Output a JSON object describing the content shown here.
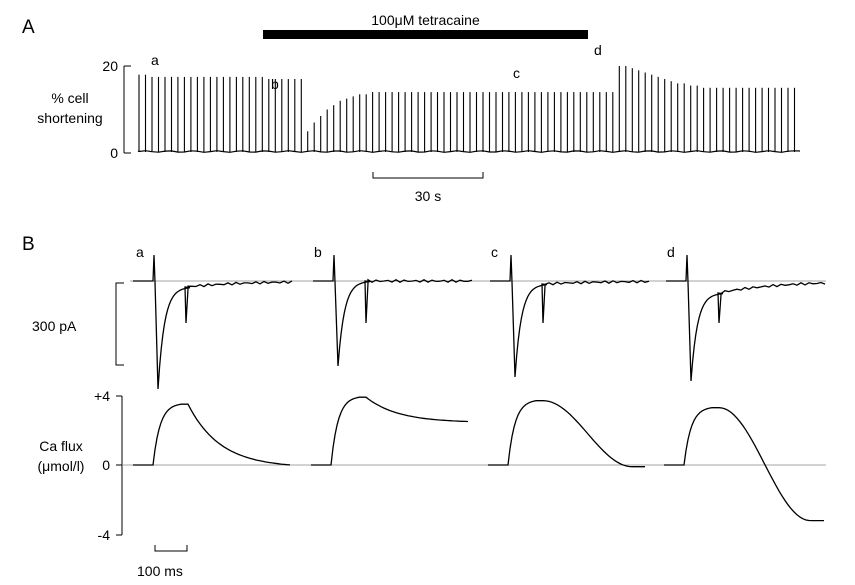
{
  "figure": {
    "panel_a": {
      "letter": "A",
      "drug_bar_label": "100μM tetracaine",
      "ylabel_line1": "% cell",
      "ylabel_line2": "shortening",
      "yticks": [
        "20",
        "0"
      ],
      "scale_bar_label": "30 s",
      "markers": [
        "a",
        "b",
        "c",
        "d"
      ]
    },
    "panel_b": {
      "letter": "B",
      "current_scale_label": "300 pA",
      "trace_labels": [
        "a",
        "b",
        "c",
        "d"
      ],
      "flux_ylabel_line1": "Ca flux",
      "flux_ylabel_line2": "(μmol/l)",
      "flux_yticks": [
        "+4",
        "0",
        "-4"
      ],
      "time_scale_label": "100 ms"
    }
  },
  "chart_data": [
    {
      "type": "line",
      "title": "",
      "xlabel": "",
      "ylabel": "% cell shortening",
      "ylim": [
        0,
        20
      ],
      "y_ticks": [
        0,
        20
      ],
      "scale_bar": "30 s",
      "annotation": "100μM tetracaine",
      "series": [
        {
          "values": [
            18,
            18,
            17.5,
            17.5,
            17.5,
            17.5,
            17.5,
            17.5,
            17.5,
            17.5,
            17.5,
            17.5,
            17.5,
            17.5,
            17.5,
            17.5,
            17.5,
            17.5,
            17.5,
            17.5,
            17,
            17,
            17,
            17,
            17,
            17,
            5,
            7,
            8.5,
            10,
            11,
            12,
            12.5,
            13,
            13.5,
            13.5,
            14,
            14,
            14,
            14,
            14,
            14,
            14,
            14,
            14,
            14,
            14,
            14,
            14,
            14,
            14,
            14,
            14,
            14,
            14,
            14,
            14,
            14,
            14,
            14,
            14,
            14,
            14,
            14,
            14,
            14,
            14,
            14,
            14,
            14,
            14,
            14,
            14,
            14,
            20,
            20,
            19.5,
            19,
            18.5,
            18,
            17.5,
            17,
            16.5,
            16,
            16,
            15.5,
            15.5,
            15,
            15,
            15,
            15,
            15,
            15,
            15,
            15,
            15,
            15,
            15,
            15,
            15,
            15,
            15
          ]
        }
      ]
    },
    {
      "type": "line",
      "title": "",
      "ylabel": "Ca flux (μmol/l)",
      "ylim": [
        -4,
        4
      ],
      "y_ticks": [
        -4,
        0,
        4
      ],
      "scale_bar": "100 ms",
      "series": [
        {
          "name": "a",
          "peak": 3.5,
          "end": 0
        },
        {
          "name": "b",
          "peak": 3.9,
          "end": 2.5
        },
        {
          "name": "c",
          "peak": 3.7,
          "end": -0.1
        },
        {
          "name": "d",
          "peak": 3.3,
          "end": -3.2
        }
      ]
    }
  ]
}
